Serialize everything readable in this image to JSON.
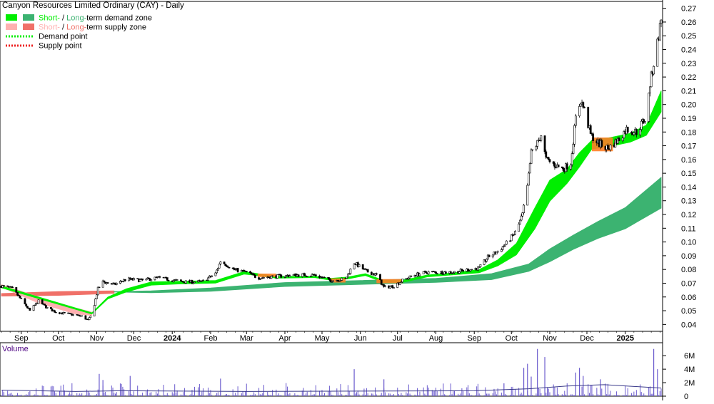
{
  "chart_data": {
    "type": "candlestick",
    "title": "Canyon Resources Limited Ordinary (CAY) - Daily",
    "legend": [
      {
        "label_short": "Short-",
        "sep": " / ",
        "label_long": "Long-",
        "rest": "term demand zone",
        "short_color": "#00ee00",
        "long_color": "#3cb371",
        "kind": "zone"
      },
      {
        "label_short": "Short-",
        "sep": " / ",
        "label_long": "Long-",
        "rest": "term supply zone",
        "short_color": "#ffb0b0",
        "long_color": "#f07068",
        "kind": "zone"
      },
      {
        "label": "Demand point",
        "color": "#00ee00",
        "kind": "point"
      },
      {
        "label": "Supply point",
        "color": "#ee2222",
        "kind": "point"
      }
    ],
    "legend_placement": "top-left",
    "price_axis": {
      "min": 0.035,
      "max": 0.275,
      "ticks": [
        0.04,
        0.05,
        0.06,
        0.07,
        0.08,
        0.09,
        0.1,
        0.11,
        0.12,
        0.13,
        0.14,
        0.15,
        0.16,
        0.17,
        0.18,
        0.19,
        0.2,
        0.21,
        0.22,
        0.23,
        0.24,
        0.25,
        0.26,
        0.27
      ],
      "tick_labels": [
        "0.04",
        "0.05",
        "0.06",
        "0.07",
        "0.08",
        "0.09",
        "0.10",
        "0.11",
        "0.12",
        "0.13",
        "0.14",
        "0.15",
        "0.16",
        "0.17",
        "0.18",
        "0.19",
        "0.20",
        "0.21",
        "0.22",
        "0.23",
        "0.24",
        "0.25",
        "0.26",
        "0.27"
      ],
      "side": "right"
    },
    "x_axis": {
      "start": "2023-08-16",
      "end": "2025-01-30",
      "labels": [
        {
          "date": "2023-09-01",
          "label": "Sep",
          "bold": false
        },
        {
          "date": "2023-10-01",
          "label": "Oct",
          "bold": false
        },
        {
          "date": "2023-11-01",
          "label": "Nov",
          "bold": false
        },
        {
          "date": "2023-12-01",
          "label": "Dec",
          "bold": false
        },
        {
          "date": "2024-01-01",
          "label": "2024",
          "bold": true
        },
        {
          "date": "2024-02-01",
          "label": "Feb",
          "bold": false
        },
        {
          "date": "2024-03-01",
          "label": "Mar",
          "bold": false
        },
        {
          "date": "2024-04-01",
          "label": "Apr",
          "bold": false
        },
        {
          "date": "2024-05-01",
          "label": "May",
          "bold": false
        },
        {
          "date": "2024-06-01",
          "label": "Jun",
          "bold": false
        },
        {
          "date": "2024-07-01",
          "label": "Jul",
          "bold": false
        },
        {
          "date": "2024-08-01",
          "label": "Aug",
          "bold": false
        },
        {
          "date": "2024-09-01",
          "label": "Sep",
          "bold": false
        },
        {
          "date": "2024-10-01",
          "label": "Oct",
          "bold": false
        },
        {
          "date": "2024-11-01",
          "label": "Nov",
          "bold": false
        },
        {
          "date": "2024-12-01",
          "label": "Dec",
          "bold": false
        },
        {
          "date": "2025-01-01",
          "label": "2025",
          "bold": true
        }
      ]
    },
    "price_path": [
      [
        "2023-08-16",
        0.068
      ],
      [
        "2023-08-25",
        0.066
      ],
      [
        "2023-09-01",
        0.058
      ],
      [
        "2023-09-08",
        0.05
      ],
      [
        "2023-09-15",
        0.057
      ],
      [
        "2023-09-22",
        0.052
      ],
      [
        "2023-09-29",
        0.049
      ],
      [
        "2023-10-06",
        0.048
      ],
      [
        "2023-10-13",
        0.047
      ],
      [
        "2023-10-20",
        0.046
      ],
      [
        "2023-10-25",
        0.043
      ],
      [
        "2023-10-28",
        0.047
      ],
      [
        "2023-11-02",
        0.066
      ],
      [
        "2023-11-06",
        0.071
      ],
      [
        "2023-11-15",
        0.069
      ],
      [
        "2023-11-25",
        0.073
      ],
      [
        "2023-12-08",
        0.072
      ],
      [
        "2023-12-20",
        0.074
      ],
      [
        "2024-01-10",
        0.071
      ],
      [
        "2024-01-25",
        0.071
      ],
      [
        "2024-02-05",
        0.077
      ],
      [
        "2024-02-09",
        0.086
      ],
      [
        "2024-02-20",
        0.08
      ],
      [
        "2024-03-01",
        0.078
      ],
      [
        "2024-03-10",
        0.074
      ],
      [
        "2024-03-25",
        0.075
      ],
      [
        "2024-04-10",
        0.076
      ],
      [
        "2024-04-25",
        0.076
      ],
      [
        "2024-05-08",
        0.072
      ],
      [
        "2024-05-20",
        0.073
      ],
      [
        "2024-05-27",
        0.085
      ],
      [
        "2024-06-05",
        0.079
      ],
      [
        "2024-06-14",
        0.076
      ],
      [
        "2024-06-20",
        0.067
      ],
      [
        "2024-06-28",
        0.068
      ],
      [
        "2024-07-05",
        0.072
      ],
      [
        "2024-07-15",
        0.076
      ],
      [
        "2024-07-25",
        0.078
      ],
      [
        "2024-08-05",
        0.078
      ],
      [
        "2024-08-15",
        0.078
      ],
      [
        "2024-08-28",
        0.08
      ],
      [
        "2024-09-05",
        0.081
      ],
      [
        "2024-09-12",
        0.089
      ],
      [
        "2024-09-20",
        0.093
      ],
      [
        "2024-09-28",
        0.1
      ],
      [
        "2024-10-05",
        0.108
      ],
      [
        "2024-10-10",
        0.12
      ],
      [
        "2024-10-14",
        0.14
      ],
      [
        "2024-10-17",
        0.165
      ],
      [
        "2024-10-22",
        0.172
      ],
      [
        "2024-10-25",
        0.178
      ],
      [
        "2024-10-29",
        0.16
      ],
      [
        "2024-11-05",
        0.156
      ],
      [
        "2024-11-12",
        0.153
      ],
      [
        "2024-11-18",
        0.158
      ],
      [
        "2024-11-22",
        0.19
      ],
      [
        "2024-11-26",
        0.203
      ],
      [
        "2024-11-29",
        0.196
      ],
      [
        "2024-12-04",
        0.178
      ],
      [
        "2024-12-10",
        0.172
      ],
      [
        "2024-12-18",
        0.168
      ],
      [
        "2024-12-26",
        0.174
      ],
      [
        "2025-01-02",
        0.182
      ],
      [
        "2025-01-10",
        0.18
      ],
      [
        "2025-01-15",
        0.187
      ],
      [
        "2025-01-18",
        0.19
      ],
      [
        "2025-01-21",
        0.215
      ],
      [
        "2025-01-24",
        0.23
      ],
      [
        "2025-01-27",
        0.245
      ],
      [
        "2025-01-30",
        0.262
      ]
    ],
    "short_term_zone": [
      {
        "date": "2023-08-16",
        "upper": 0.068,
        "lower": 0.067
      },
      {
        "date": "2023-10-28",
        "upper": 0.0485,
        "lower": 0.048
      },
      {
        "date": "2023-11-10",
        "upper": 0.06,
        "lower": 0.059
      },
      {
        "date": "2023-11-25",
        "upper": 0.066,
        "lower": 0.064
      },
      {
        "date": "2023-12-15",
        "upper": 0.071,
        "lower": 0.069
      },
      {
        "date": "2024-01-10",
        "upper": 0.0715,
        "lower": 0.07
      },
      {
        "date": "2024-02-05",
        "upper": 0.072,
        "lower": 0.0705
      },
      {
        "date": "2024-02-28",
        "upper": 0.0785,
        "lower": 0.077
      },
      {
        "date": "2024-03-10",
        "upper": 0.077,
        "lower": 0.076
      },
      {
        "date": "2024-03-25",
        "upper": 0.075,
        "lower": 0.074
      },
      {
        "date": "2024-04-25",
        "upper": 0.075,
        "lower": 0.0745
      },
      {
        "date": "2024-05-08",
        "upper": 0.0735,
        "lower": 0.0725
      },
      {
        "date": "2024-05-22",
        "upper": 0.0745,
        "lower": 0.0735
      },
      {
        "date": "2024-06-05",
        "upper": 0.077,
        "lower": 0.076
      },
      {
        "date": "2024-06-20",
        "upper": 0.072,
        "lower": 0.071
      },
      {
        "date": "2024-07-05",
        "upper": 0.072,
        "lower": 0.071
      },
      {
        "date": "2024-07-25",
        "upper": 0.076,
        "lower": 0.075
      },
      {
        "date": "2024-08-15",
        "upper": 0.0775,
        "lower": 0.0765
      },
      {
        "date": "2024-09-05",
        "upper": 0.08,
        "lower": 0.078
      },
      {
        "date": "2024-09-20",
        "upper": 0.087,
        "lower": 0.083
      },
      {
        "date": "2024-10-05",
        "upper": 0.099,
        "lower": 0.091
      },
      {
        "date": "2024-10-20",
        "upper": 0.125,
        "lower": 0.11
      },
      {
        "date": "2024-11-01",
        "upper": 0.145,
        "lower": 0.13
      },
      {
        "date": "2024-11-15",
        "upper": 0.153,
        "lower": 0.143
      },
      {
        "date": "2024-11-25",
        "upper": 0.165,
        "lower": 0.155
      },
      {
        "date": "2024-12-05",
        "upper": 0.174,
        "lower": 0.168
      },
      {
        "date": "2024-12-20",
        "upper": 0.176,
        "lower": 0.17
      },
      {
        "date": "2025-01-05",
        "upper": 0.179,
        "lower": 0.173
      },
      {
        "date": "2025-01-18",
        "upper": 0.185,
        "lower": 0.178
      },
      {
        "date": "2025-01-30",
        "upper": 0.21,
        "lower": 0.195
      }
    ],
    "short_term_supply": [
      {
        "date": "2023-08-16",
        "upper": 0.069,
        "lower": 0.0675
      },
      {
        "date": "2023-09-15",
        "upper": 0.06,
        "lower": 0.056
      },
      {
        "date": "2023-10-15",
        "upper": 0.052,
        "lower": 0.048
      },
      {
        "date": "2023-10-28",
        "upper": 0.049,
        "lower": 0.047
      }
    ],
    "long_term_zone": [
      {
        "date": "2023-11-15",
        "upper": 0.064,
        "lower": 0.064
      },
      {
        "date": "2023-12-15",
        "upper": 0.0645,
        "lower": 0.0635
      },
      {
        "date": "2024-02-01",
        "upper": 0.0665,
        "lower": 0.0645
      },
      {
        "date": "2024-04-01",
        "upper": 0.0705,
        "lower": 0.068
      },
      {
        "date": "2024-06-01",
        "upper": 0.072,
        "lower": 0.0695
      },
      {
        "date": "2024-08-01",
        "upper": 0.0735,
        "lower": 0.071
      },
      {
        "date": "2024-09-15",
        "upper": 0.077,
        "lower": 0.073
      },
      {
        "date": "2024-10-15",
        "upper": 0.084,
        "lower": 0.079
      },
      {
        "date": "2024-11-01",
        "upper": 0.095,
        "lower": 0.086
      },
      {
        "date": "2024-11-20",
        "upper": 0.105,
        "lower": 0.095
      },
      {
        "date": "2024-12-10",
        "upper": 0.115,
        "lower": 0.103
      },
      {
        "date": "2025-01-01",
        "upper": 0.125,
        "lower": 0.11
      },
      {
        "date": "2025-01-30",
        "upper": 0.147,
        "lower": 0.125
      }
    ],
    "long_term_supply": [
      {
        "date": "2023-08-16",
        "upper": 0.0625,
        "lower": 0.061
      },
      {
        "date": "2023-10-01",
        "upper": 0.064,
        "lower": 0.0615
      },
      {
        "date": "2023-11-15",
        "upper": 0.0645,
        "lower": 0.063
      }
    ],
    "supply_markers": [
      {
        "start": "2024-03-10",
        "end": "2024-03-25",
        "upper": 0.077,
        "lower": 0.0745
      },
      {
        "start": "2024-05-08",
        "end": "2024-05-20",
        "upper": 0.0735,
        "lower": 0.0705
      },
      {
        "start": "2024-06-14",
        "end": "2024-07-05",
        "upper": 0.073,
        "lower": 0.07
      },
      {
        "start": "2024-12-05",
        "end": "2024-12-22",
        "upper": 0.176,
        "lower": 0.166
      }
    ],
    "volume": {
      "label": "Volume",
      "axis": {
        "max": 7.5,
        "ticks": [
          0,
          2,
          4,
          6
        ],
        "tick_labels": [
          "0",
          "2M",
          "4M",
          "6M"
        ]
      },
      "spikes": [
        {
          "date": "2023-11-03",
          "value": 3.3
        },
        {
          "date": "2023-11-06",
          "value": 2.4
        },
        {
          "date": "2023-11-28",
          "value": 3.0
        },
        {
          "date": "2024-02-09",
          "value": 2.6
        },
        {
          "date": "2024-05-27",
          "value": 4.0
        },
        {
          "date": "2024-06-20",
          "value": 2.5
        },
        {
          "date": "2024-09-25",
          "value": 1.9
        },
        {
          "date": "2024-10-11",
          "value": 4.2
        },
        {
          "date": "2024-10-14",
          "value": 4.8
        },
        {
          "date": "2024-10-17",
          "value": 2.9
        },
        {
          "date": "2024-10-22",
          "value": 7.0
        },
        {
          "date": "2024-10-28",
          "value": 5.8
        },
        {
          "date": "2024-11-22",
          "value": 3.5
        },
        {
          "date": "2024-11-25",
          "value": 4.2
        },
        {
          "date": "2024-11-28",
          "value": 3.0
        },
        {
          "date": "2024-12-12",
          "value": 2.5
        },
        {
          "date": "2025-01-24",
          "value": 7.0
        },
        {
          "date": "2025-01-27",
          "value": 4.0
        }
      ],
      "average": [
        [
          "2023-08-16",
          0.9
        ],
        [
          "2023-10-15",
          0.7
        ],
        [
          "2023-11-20",
          0.8
        ],
        [
          "2024-03-01",
          0.7
        ],
        [
          "2024-06-01",
          0.75
        ],
        [
          "2024-09-01",
          0.8
        ],
        [
          "2024-10-15",
          1.1
        ],
        [
          "2024-11-15",
          1.5
        ],
        [
          "2024-12-15",
          1.7
        ],
        [
          "2025-01-30",
          1.2
        ]
      ]
    }
  }
}
